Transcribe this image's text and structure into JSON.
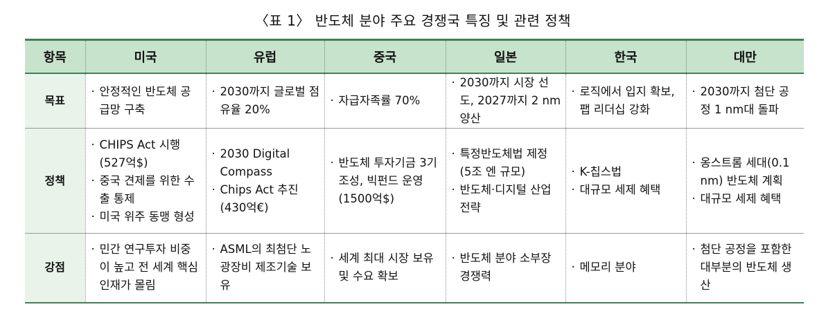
{
  "caption": "〈표 1〉 반도체 분야 주요 경쟁국 특징 및 관련 정책",
  "headers": [
    "항목",
    "미국",
    "유럽",
    "중국",
    "일본",
    "한국",
    "대만"
  ],
  "rows": [
    {
      "label": "목표",
      "cells": [
        [
          "안정적인 반도체 공급망 구축"
        ],
        [
          "2030까지 글로벌 점유율 20%"
        ],
        [
          "자급자족률 70%"
        ],
        [
          "2030까지 시장 선도, 2027까지 2 nm 양산"
        ],
        [
          "로직에서 입지 확보, 팹 리더십 강화"
        ],
        [
          "2030까지 첨단 공정 1 nm대 돌파"
        ]
      ]
    },
    {
      "label": "정책",
      "cells": [
        [
          "CHIPS Act 시행 (527억$)",
          "중국 견제를 위한 수출 통제",
          "미국 위주 동맹 형성"
        ],
        [
          "2030 Digital Compass",
          "Chips Act 추진 (430억€)"
        ],
        [
          "반도체 투자기금 3기 조성, 빅펀드 운영 (1500억$)"
        ],
        [
          "특정반도체법 제정 (5조 엔 규모)",
          "반도체·디지털 산업 전략"
        ],
        [
          "K-칩스법",
          "대규모 세제 혜택"
        ],
        [
          "옹스트롬 세대(0.1 nm) 반도체 계획",
          "대규모 세제 혜택"
        ]
      ]
    },
    {
      "label": "강점",
      "cells": [
        [
          "민간 연구투자 비중이 높고 전 세계 핵심인재가 몰림"
        ],
        [
          "ASML의 최첨단 노광장비 제조기술 보유"
        ],
        [
          "세계 최대 시장 보유 및 수요 확보"
        ],
        [
          "반도체 분야 소부장 경쟁력"
        ],
        [
          "메모리 분야"
        ],
        [
          "첨단 공정을 포함한 대부분의 반도체 생산"
        ]
      ]
    }
  ]
}
